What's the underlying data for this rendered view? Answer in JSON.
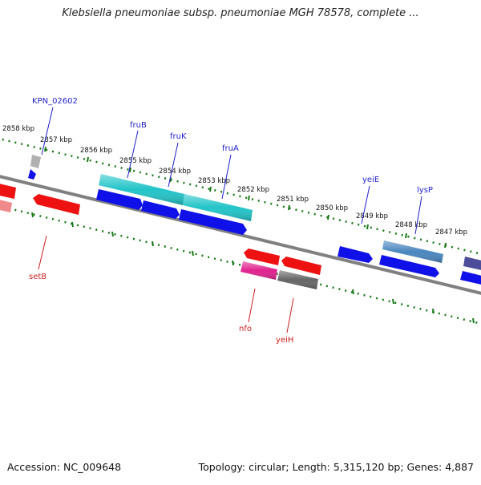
{
  "title": "Klebsiella pneumoniae subsp. pneumoniae MGH 78578, complete ...",
  "footer": {
    "accession": "Accession: NC_009648",
    "topology": "Topology: circular; Length: 5,315,120 bp; Genes: 4,887"
  },
  "colors": {
    "backbone": "#808080",
    "tick": "#1a7a1a",
    "label_forward": "#1f1fcc",
    "label_reverse": "#cc1f1f",
    "blue": "#1010e8",
    "red": "#ee1111",
    "cyan": "#22c4c8",
    "steel": "#4a86bf",
    "magenta": "#e0238f",
    "gray": "#666666",
    "lightgray": "#b0b0b0",
    "pink": "#f08a8a",
    "slate": "#4d4d9a"
  },
  "ruler": {
    "unit": "kbp",
    "labels": [
      "2858 kbp",
      "2857 kbp",
      "2856 kbp",
      "2855 kbp",
      "2854 kbp",
      "2853 kbp",
      "2852 kbp",
      "2851 kbp",
      "2850 kbp",
      "2849 kbp",
      "2848 kbp",
      "2847 kbp"
    ]
  },
  "gene_labels_forward": [
    "KPN_02602",
    "fruB",
    "fruK",
    "fruA",
    "yeiE",
    "lysP"
  ],
  "gene_labels_reverse": [
    "setB",
    "nfo",
    "yeiH"
  ]
}
